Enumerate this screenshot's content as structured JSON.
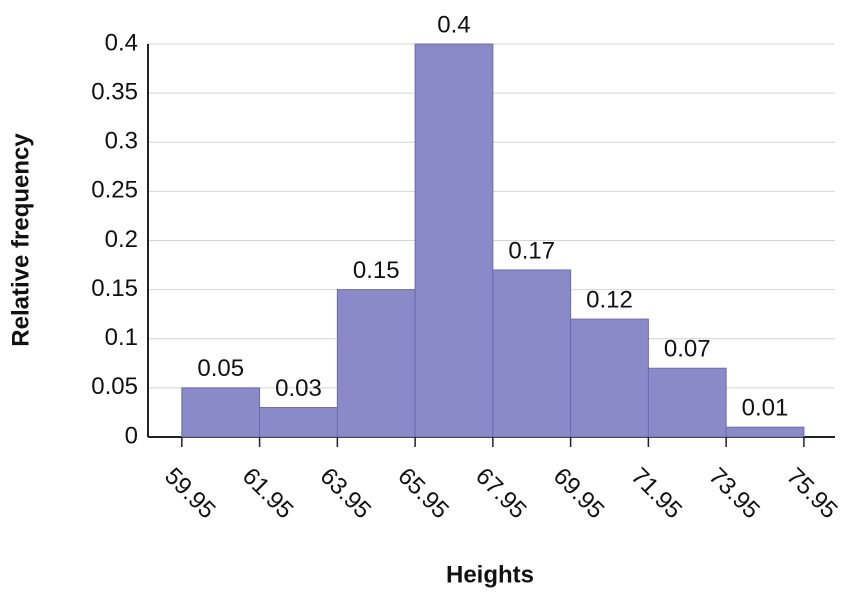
{
  "chart_data": {
    "type": "histogram",
    "xlabel": "Heights",
    "ylabel": "Relative frequency",
    "bins": [
      59.95,
      61.95,
      63.95,
      65.95,
      67.95,
      69.95,
      71.95,
      73.95,
      75.95
    ],
    "values": [
      0.05,
      0.03,
      0.15,
      0.4,
      0.17,
      0.12,
      0.07,
      0.01
    ],
    "color": "#8a8ac8",
    "edgecolor": "#6b6bad",
    "xlim": [
      59.08,
      76.75
    ],
    "ylim": [
      0,
      0.4
    ],
    "yticks": [
      0,
      0.05,
      0.1,
      0.15,
      0.2,
      0.25,
      0.3,
      0.35,
      0.4
    ],
    "grid": true
  }
}
